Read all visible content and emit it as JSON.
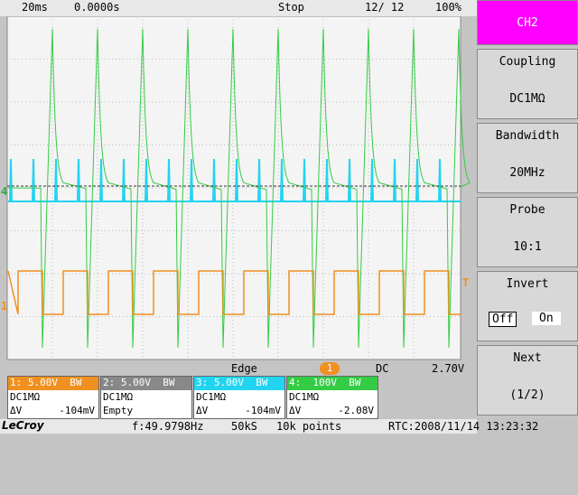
{
  "top_bar": {
    "timebase": "20ms",
    "delay": "0.0000s",
    "state": "Stop",
    "count": "12/ 12",
    "battery": "100%"
  },
  "menu": {
    "title": "CH2",
    "coupling": {
      "label": "Coupling",
      "value": "DC1MΩ"
    },
    "bandwidth": {
      "label": "Bandwidth",
      "value": "20MHz"
    },
    "probe": {
      "label": "Probe",
      "value": "10:1"
    },
    "invert": {
      "label": "Invert",
      "off": "Off",
      "on": "On"
    },
    "next": {
      "label": "Next",
      "value": "(1/2)"
    }
  },
  "markers": {
    "ch1": "1",
    "ch4": "4",
    "trigger": "T"
  },
  "trigger": {
    "type": "Edge",
    "source": "1",
    "coupling": "DC",
    "level": "2.70V"
  },
  "channels": [
    {
      "header": "1: 5.00V  BW",
      "coupling": "DC1MΩ",
      "delta": "ΔV",
      "value": "-104mV"
    },
    {
      "header": "2: 5.00V  BW",
      "coupling": "DC1MΩ",
      "delta": "Empty",
      "value": ""
    },
    {
      "header": "3: 5.00V  BW",
      "coupling": "DC1MΩ",
      "delta": "ΔV",
      "value": "-104mV"
    },
    {
      "header": "4:  100V  BW",
      "coupling": "DC1MΩ",
      "delta": "ΔV",
      "value": "-2.08V"
    }
  ],
  "footer": {
    "brand": "LeCroy",
    "frequency": "f:49.9798Hz",
    "sample_rate": "50kS",
    "points": "10k points",
    "rtc": "RTC:2008/11/14 13:23:32"
  }
}
